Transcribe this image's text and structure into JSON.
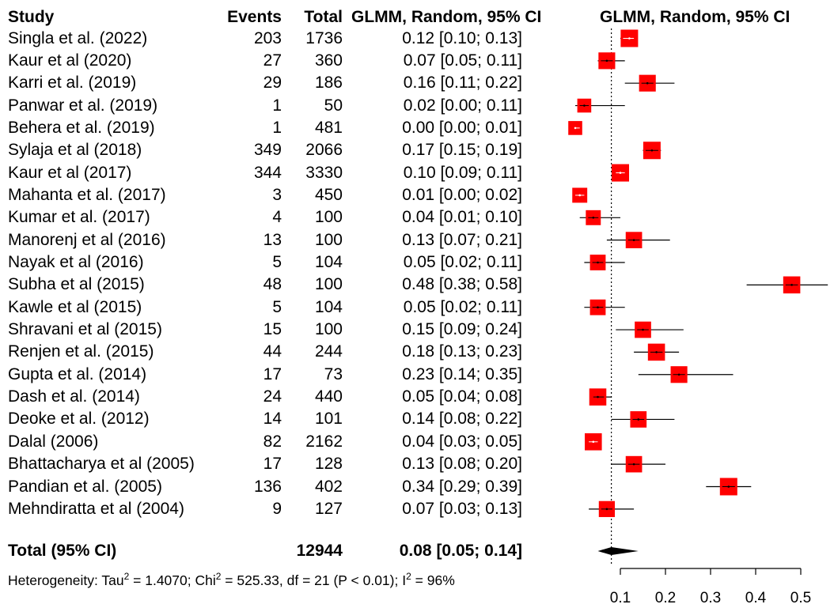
{
  "headers": {
    "study": "Study",
    "events": "Events",
    "total": "Total",
    "ci": "GLMM, Random, 95% CI",
    "plot": "GLMM, Random, 95% CI"
  },
  "studies": [
    {
      "name": "Singla et al. (2022)",
      "events": "203",
      "total": "1736",
      "ci_text": "0.12 [0.10; 0.13]"
    },
    {
      "name": "Kaur et al (2020)",
      "events": "27",
      "total": "360",
      "ci_text": "0.07 [0.05; 0.11]"
    },
    {
      "name": "Karri et al. (2019)",
      "events": "29",
      "total": "186",
      "ci_text": "0.16 [0.11; 0.22]"
    },
    {
      "name": "Panwar et al. (2019)",
      "events": "1",
      "total": "50",
      "ci_text": "0.02 [0.00; 0.11]"
    },
    {
      "name": "Behera et al. (2019)",
      "events": "1",
      "total": "481",
      "ci_text": "0.00 [0.00; 0.01]"
    },
    {
      "name": "Sylaja et al (2018)",
      "events": "349",
      "total": "2066",
      "ci_text": "0.17 [0.15; 0.19]"
    },
    {
      "name": "Kaur et al (2017)",
      "events": "344",
      "total": "3330",
      "ci_text": "0.10 [0.09; 0.11]"
    },
    {
      "name": "Mahanta et al. (2017)",
      "events": "3",
      "total": "450",
      "ci_text": "0.01 [0.00; 0.02]"
    },
    {
      "name": "Kumar et al. (2017)",
      "events": "4",
      "total": "100",
      "ci_text": "0.04 [0.01; 0.10]"
    },
    {
      "name": "Manorenj et al (2016)",
      "events": "13",
      "total": "100",
      "ci_text": "0.13 [0.07; 0.21]"
    },
    {
      "name": "Nayak et al (2016)",
      "events": "5",
      "total": "104",
      "ci_text": "0.05 [0.02; 0.11]"
    },
    {
      "name": "Subha et al (2015)",
      "events": "48",
      "total": "100",
      "ci_text": "0.48 [0.38; 0.58]"
    },
    {
      "name": "Kawle  et al (2015)",
      "events": "5",
      "total": "104",
      "ci_text": "0.05 [0.02; 0.11]"
    },
    {
      "name": "Shravani et al (2015)",
      "events": "15",
      "total": "100",
      "ci_text": "0.15 [0.09; 0.24]"
    },
    {
      "name": "Renjen et al. (2015)",
      "events": "44",
      "total": "244",
      "ci_text": "0.18 [0.13; 0.23]"
    },
    {
      "name": "Gupta et al. (2014)",
      "events": "17",
      "total": "73",
      "ci_text": "0.23 [0.14; 0.35]"
    },
    {
      "name": "Dash et al. (2014)",
      "events": "24",
      "total": "440",
      "ci_text": "0.05 [0.04; 0.08]"
    },
    {
      "name": "Deoke et al. (2012)",
      "events": "14",
      "total": "101",
      "ci_text": "0.14 [0.08; 0.22]"
    },
    {
      "name": "Dalal (2006)",
      "events": "82",
      "total": "2162",
      "ci_text": "0.04 [0.03; 0.05]"
    },
    {
      "name": "Bhattacharya et al (2005)",
      "events": "17",
      "total": "128",
      "ci_text": "0.13 [0.08; 0.20]"
    },
    {
      "name": "Pandian et al. (2005)",
      "events": "136",
      "total": "402",
      "ci_text": "0.34 [0.29; 0.39]"
    },
    {
      "name": "Mehndiratta et al (2004)",
      "events": "9",
      "total": "127",
      "ci_text": "0.07 [0.03; 0.13]"
    }
  ],
  "total_row": {
    "label": "Total (95% CI)",
    "total": "12944",
    "ci_text": "0.08 [0.05; 0.14]"
  },
  "heterogeneity": {
    "prefix": "Heterogeneity: Tau",
    "tau_sq": "2",
    "tau_val": " = 1.4070; Chi",
    "chi_sq": "2",
    "chi_val": " = 525.33, df = 21 (P < 0.01); I",
    "i_sq": "2",
    "i_val": " = 96%"
  },
  "colors": {
    "box": "#ff0000",
    "line": "#000000"
  },
  "chart_data": {
    "type": "scatter",
    "title": "GLMM, Random, 95% CI",
    "xlim": [
      0.0,
      0.53
    ],
    "xticks": [
      0.1,
      0.2,
      0.3,
      0.4,
      0.5
    ],
    "xtick_labels": [
      "0.1",
      "0.2",
      "0.3",
      "0.4",
      "0.5"
    ],
    "reference_line": 0.08,
    "points": [
      {
        "study": "Singla et al. (2022)",
        "est": 0.12,
        "lo": 0.1,
        "hi": 0.13,
        "weight": 5.0
      },
      {
        "study": "Kaur et al (2020)",
        "est": 0.07,
        "lo": 0.05,
        "hi": 0.11,
        "weight": 4.8
      },
      {
        "study": "Karri et al. (2019)",
        "est": 0.16,
        "lo": 0.11,
        "hi": 0.22,
        "weight": 4.8
      },
      {
        "study": "Panwar et al. (2019)",
        "est": 0.02,
        "lo": 0.0,
        "hi": 0.11,
        "weight": 4.0
      },
      {
        "study": "Behera et al. (2019)",
        "est": 0.0,
        "lo": 0.0,
        "hi": 0.01,
        "weight": 4.0
      },
      {
        "study": "Sylaja et al (2018)",
        "est": 0.17,
        "lo": 0.15,
        "hi": 0.19,
        "weight": 5.0
      },
      {
        "study": "Kaur et al (2017)",
        "est": 0.1,
        "lo": 0.09,
        "hi": 0.11,
        "weight": 5.0
      },
      {
        "study": "Mahanta et al. (2017)",
        "est": 0.01,
        "lo": 0.0,
        "hi": 0.02,
        "weight": 4.3
      },
      {
        "study": "Kumar et al. (2017)",
        "est": 0.04,
        "lo": 0.01,
        "hi": 0.1,
        "weight": 4.3
      },
      {
        "study": "Manorenj et al (2016)",
        "est": 0.13,
        "lo": 0.07,
        "hi": 0.21,
        "weight": 4.7
      },
      {
        "study": "Nayak et al (2016)",
        "est": 0.05,
        "lo": 0.02,
        "hi": 0.11,
        "weight": 4.5
      },
      {
        "study": "Subha et al (2015)",
        "est": 0.48,
        "lo": 0.38,
        "hi": 0.58,
        "weight": 4.9
      },
      {
        "study": "Kawle  et al (2015)",
        "est": 0.05,
        "lo": 0.02,
        "hi": 0.11,
        "weight": 4.5
      },
      {
        "study": "Shravani et al (2015)",
        "est": 0.15,
        "lo": 0.09,
        "hi": 0.24,
        "weight": 4.7
      },
      {
        "study": "Renjen et al. (2015)",
        "est": 0.18,
        "lo": 0.13,
        "hi": 0.23,
        "weight": 4.9
      },
      {
        "study": "Gupta et al. (2014)",
        "est": 0.23,
        "lo": 0.14,
        "hi": 0.35,
        "weight": 4.8
      },
      {
        "study": "Dash et al. (2014)",
        "est": 0.05,
        "lo": 0.04,
        "hi": 0.08,
        "weight": 4.9
      },
      {
        "study": "Deoke et al. (2012)",
        "est": 0.14,
        "lo": 0.08,
        "hi": 0.22,
        "weight": 4.7
      },
      {
        "study": "Dalal (2006)",
        "est": 0.04,
        "lo": 0.03,
        "hi": 0.05,
        "weight": 4.9
      },
      {
        "study": "Bhattacharya et al (2005)",
        "est": 0.13,
        "lo": 0.08,
        "hi": 0.2,
        "weight": 4.7
      },
      {
        "study": "Pandian et al. (2005)",
        "est": 0.34,
        "lo": 0.29,
        "hi": 0.39,
        "weight": 5.0
      },
      {
        "study": "Mehndiratta et al (2004)",
        "est": 0.07,
        "lo": 0.03,
        "hi": 0.13,
        "weight": 4.6
      }
    ],
    "pooled": {
      "est": 0.08,
      "lo": 0.05,
      "hi": 0.14
    }
  }
}
